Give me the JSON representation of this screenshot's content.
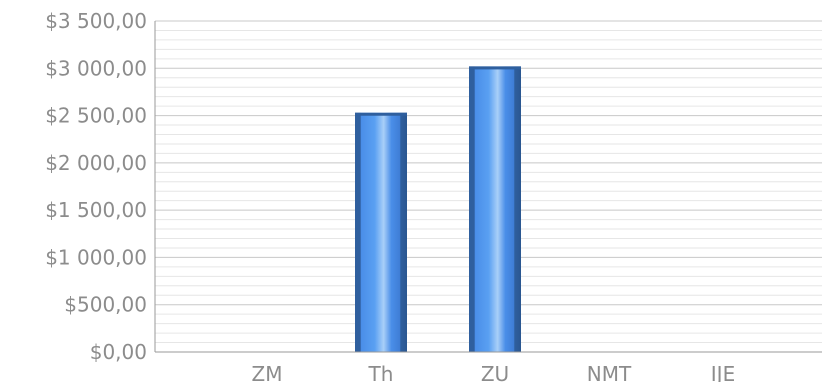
{
  "chart_data": {
    "type": "bar",
    "title": "",
    "xlabel": "",
    "ylabel": "",
    "categories": [
      "ZM",
      "Th",
      "ZU",
      "NMT",
      "IJE"
    ],
    "series": [
      {
        "values": [
          0,
          2530,
          3020,
          0,
          0
        ]
      }
    ],
    "ylim": [
      0,
      3500
    ],
    "y_major_step": 500,
    "y_minor_step": 100,
    "y_tick_labels": [
      "$0,00",
      "$500,00",
      "$1 000,00",
      "$1 500,00",
      "$2 000,00",
      "$2 500,00",
      "$3 000,00",
      "$3 500,00"
    ],
    "grid": true,
    "legend": "none",
    "colors": {
      "bar_dark": "#2f5f9e",
      "bar_mid": "#4a8ee8",
      "bar_light": "#9ec7f7",
      "grid_major": "#c8c8c8",
      "grid_minor": "#e6e6e6",
      "axis": "#9a9a9a",
      "label": "#8c8c8c"
    }
  }
}
